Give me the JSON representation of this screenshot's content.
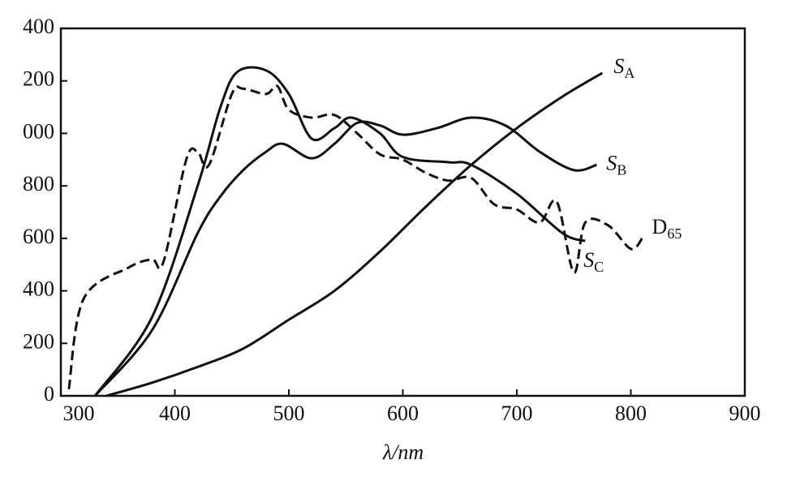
{
  "chart_data": {
    "type": "line",
    "xlabel": "λ/nm",
    "xlim": [
      300,
      900
    ],
    "xticks": [
      300,
      400,
      500,
      600,
      700,
      800,
      900
    ],
    "ylim": [
      0,
      1400
    ],
    "yticks": [
      0,
      {
        "value": 200,
        "label": "200"
      },
      {
        "value": 400,
        "label": "400"
      },
      {
        "value": 600,
        "label": "600"
      },
      {
        "value": 800,
        "label": "800"
      },
      {
        "value": 1000,
        "label": "000"
      },
      {
        "value": 1200,
        "label": "200"
      },
      {
        "value": 1400,
        "label": "400"
      }
    ],
    "series": [
      {
        "name": "S",
        "subscript": "A",
        "color": "#111111",
        "style": "solid",
        "x": [
          340,
          380,
          420,
          460,
          500,
          540,
          580,
          620,
          660,
          700,
          740,
          775
        ],
        "values": [
          0,
          50,
          110,
          180,
          290,
          400,
          550,
          720,
          880,
          1020,
          1140,
          1230
        ]
      },
      {
        "name": "S",
        "subscript": "B",
        "color": "#111111",
        "style": "solid",
        "x": [
          330,
          380,
          420,
          440,
          460,
          480,
          495,
          520,
          540,
          560,
          580,
          600,
          630,
          660,
          690,
          720,
          750,
          770
        ],
        "values": [
          0,
          250,
          620,
          760,
          860,
          930,
          960,
          905,
          960,
          1040,
          1030,
          995,
          1020,
          1060,
          1030,
          930,
          860,
          880
        ]
      },
      {
        "name": "S",
        "subscript": "C",
        "color": "#111111",
        "style": "solid",
        "x": [
          330,
          380,
          420,
          440,
          455,
          480,
          500,
          520,
          540,
          555,
          580,
          600,
          640,
          660,
          700,
          740,
          760
        ],
        "values": [
          0,
          300,
          800,
          1100,
          1235,
          1240,
          1150,
          980,
          1020,
          1060,
          1000,
          910,
          890,
          880,
          770,
          620,
          590
        ]
      },
      {
        "name": "D",
        "subscript": "65",
        "color": "#111111",
        "style": "dashed",
        "x": [
          307,
          320,
          360,
          380,
          390,
          410,
          420,
          430,
          450,
          460,
          480,
          490,
          500,
          520,
          540,
          560,
          580,
          600,
          620,
          640,
          660,
          680,
          700,
          720,
          735,
          750,
          760,
          780,
          800,
          810
        ],
        "values": [
          25,
          370,
          490,
          520,
          510,
          900,
          930,
          880,
          1150,
          1170,
          1150,
          1180,
          1090,
          1060,
          1070,
          1000,
          920,
          900,
          850,
          820,
          830,
          730,
          710,
          660,
          740,
          470,
          660,
          650,
          560,
          600
        ]
      }
    ]
  }
}
